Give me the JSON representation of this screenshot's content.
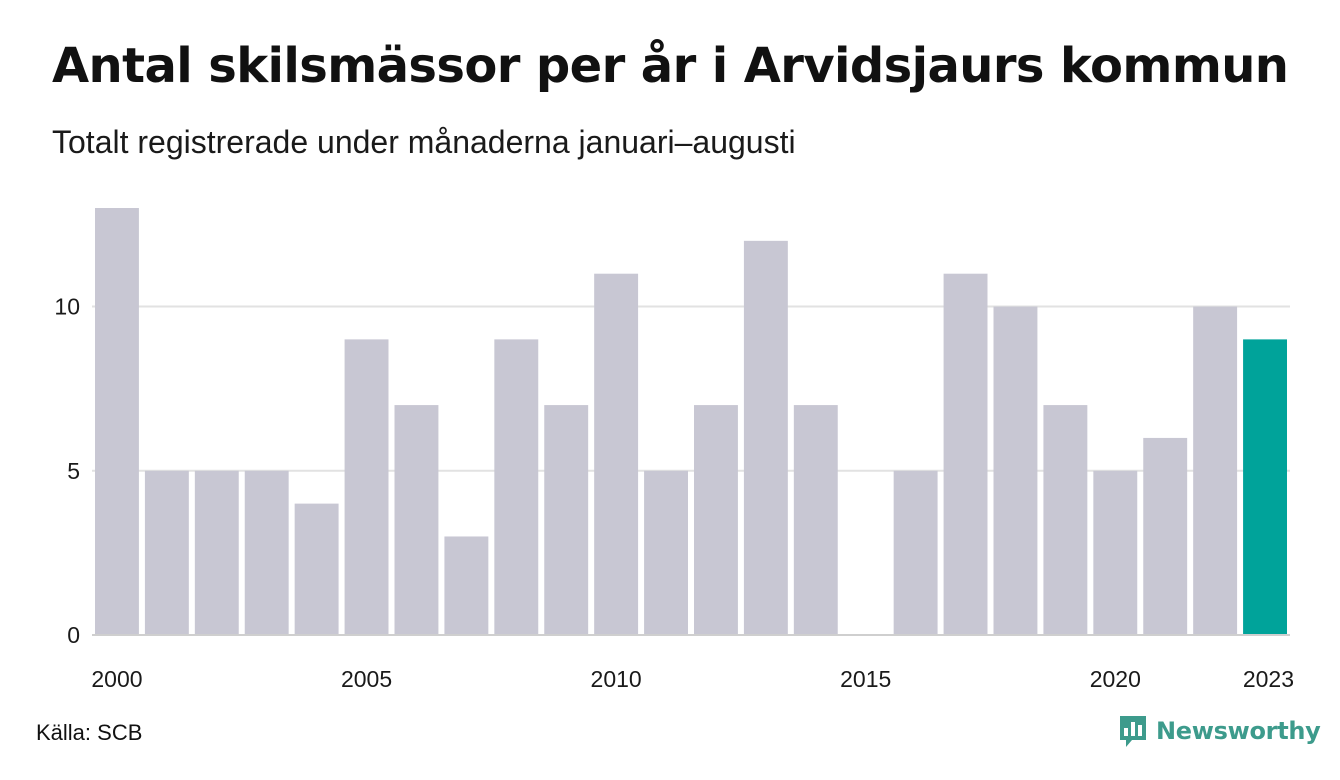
{
  "title": "Antal skilsmässor per år i Arvidsjaurs kommun",
  "subtitle": "Totalt registrerade under månaderna januari–augusti",
  "source": "Källa: SCB",
  "brand": {
    "name": "Newsworthy",
    "color": "#3d9b8c"
  },
  "colors": {
    "bar": "#c8c7d3",
    "highlight": "#00a39a",
    "grid": "#e2e2e2",
    "axis": "#cfcfcf"
  },
  "chart_data": {
    "type": "bar",
    "categories": [
      2000,
      2001,
      2002,
      2003,
      2004,
      2005,
      2006,
      2007,
      2008,
      2009,
      2010,
      2011,
      2012,
      2013,
      2014,
      2015,
      2016,
      2017,
      2018,
      2019,
      2020,
      2021,
      2022,
      2023
    ],
    "values": [
      13,
      5,
      5,
      5,
      4,
      9,
      7,
      3,
      9,
      7,
      11,
      5,
      7,
      12,
      7,
      0,
      5,
      11,
      10,
      7,
      5,
      6,
      10,
      9
    ],
    "highlight_category": 2023,
    "x_tick_labels": [
      "2000",
      "2005",
      "2010",
      "2015",
      "2020",
      "2023"
    ],
    "y_ticks": [
      0,
      5,
      10
    ],
    "ylim": [
      0,
      13
    ],
    "grid": true,
    "xlabel": "",
    "ylabel": ""
  }
}
